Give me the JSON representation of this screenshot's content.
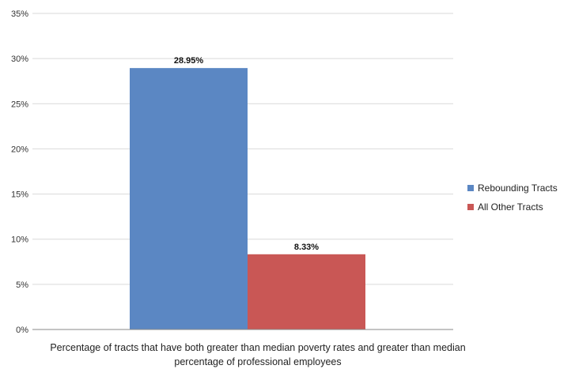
{
  "chart_data": {
    "type": "bar",
    "categories": [
      "Percentage of tracts that have both greater than median poverty rates and greater than median percentage of professional employees"
    ],
    "series": [
      {
        "name": "Rebounding Tracts",
        "values": [
          28.95
        ],
        "color": "#5b87c3"
      },
      {
        "name": "All Other Tracts",
        "values": [
          8.33
        ],
        "color": "#c95755"
      }
    ],
    "data_labels": [
      "28.95%",
      "8.33%"
    ],
    "y_ticks": [
      "0%",
      "5%",
      "10%",
      "15%",
      "20%",
      "25%",
      "30%",
      "35%"
    ],
    "ylim": [
      0,
      35
    ],
    "grid": true,
    "legend_position": "right",
    "xlabel": "Percentage of tracts that have both greater than median poverty rates and greater than median percentage of professional employees"
  }
}
